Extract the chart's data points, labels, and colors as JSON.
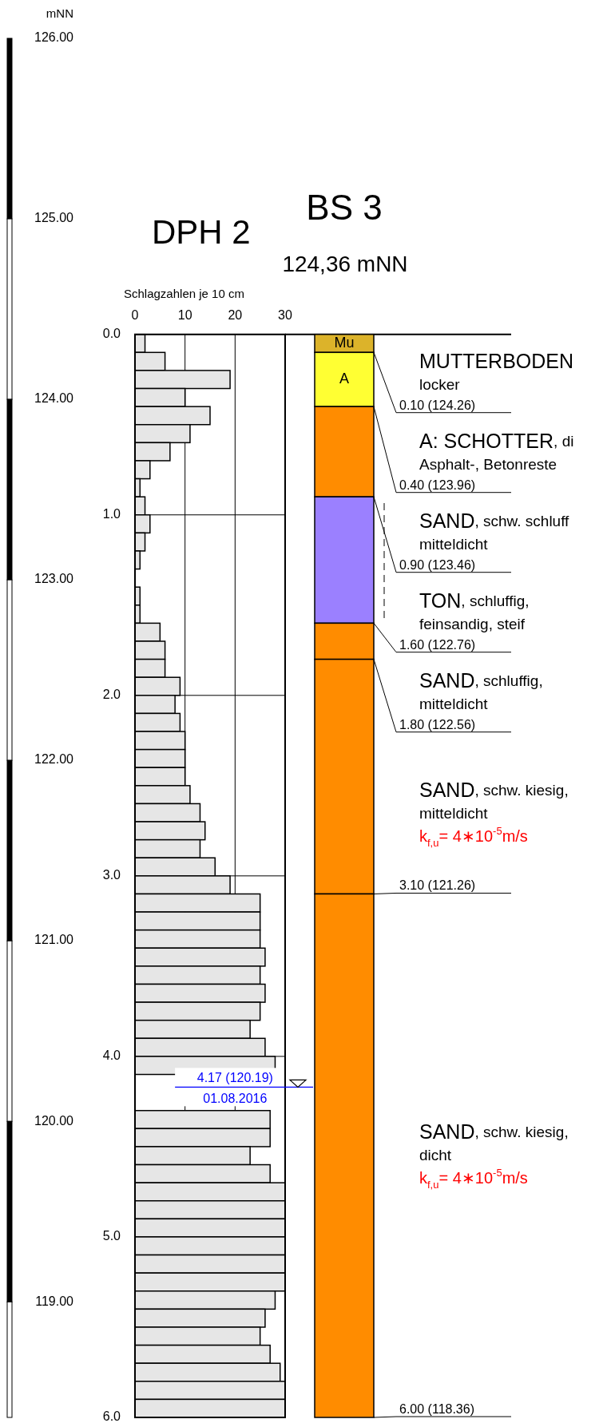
{
  "chart_data": [
    {
      "type": "histogram",
      "orientation": "horizontal",
      "title": "DPH 2",
      "xlabel": "Schlagzahlen je 10 cm",
      "y2label": "mNN",
      "color": "#e6e6e6",
      "bins": [
        0,
        0.1,
        0.2,
        0.3,
        0.4,
        0.5,
        0.6,
        0.7,
        0.8,
        0.9,
        1.0,
        1.1,
        1.2,
        1.3,
        1.4,
        1.5,
        1.6,
        1.7,
        1.8,
        1.9,
        2.0,
        2.1,
        2.2,
        2.3,
        2.4,
        2.5,
        2.6,
        2.7,
        2.8,
        2.9,
        3.0,
        3.1,
        3.2,
        3.3,
        3.4,
        3.5,
        3.6,
        3.7,
        3.8,
        3.9,
        4.0,
        4.1,
        4.2,
        4.3,
        4.4,
        4.5,
        4.6,
        4.7,
        4.8,
        4.9,
        5.0,
        5.1,
        5.2,
        5.3,
        5.4,
        5.5,
        5.6,
        5.7,
        5.8,
        5.9,
        6.0
      ],
      "values": [
        2,
        6,
        19,
        10,
        15,
        11,
        7,
        3,
        1,
        2,
        3,
        2,
        1,
        0,
        1,
        1,
        5,
        6,
        6,
        9,
        8,
        9,
        10,
        10,
        10,
        11,
        13,
        14,
        13,
        16,
        19,
        25,
        25,
        25,
        26,
        25,
        26,
        25,
        23,
        26,
        28,
        null,
        null,
        27,
        27,
        23,
        27,
        30,
        30,
        30,
        30,
        30,
        30,
        28,
        26,
        25,
        27,
        29,
        30,
        30
      ],
      "xlim": [
        0,
        30
      ],
      "xticks": [
        0,
        10,
        20,
        30
      ],
      "ylim": [
        6,
        0
      ],
      "yticks": [
        {
          "value": 0,
          "label": "0.0"
        },
        {
          "value": 1,
          "label": "1.0"
        },
        {
          "value": 2,
          "label": "2.0"
        },
        {
          "value": 3,
          "label": "3.0"
        },
        {
          "value": 4,
          "label": "4.0"
        },
        {
          "value": 5,
          "label": "5.0"
        },
        {
          "value": 6,
          "label": "6.0"
        }
      ],
      "y2lim": [
        118.36,
        126
      ],
      "y2ticks": [
        {
          "value": 119,
          "label": "119.00"
        },
        {
          "value": 120,
          "label": "120.00"
        },
        {
          "value": 121,
          "label": "121.00"
        },
        {
          "value": 122,
          "label": "122.00"
        },
        {
          "value": 123,
          "label": "123.00"
        },
        {
          "value": 124,
          "label": "124.00"
        },
        {
          "value": 125,
          "label": "125.00"
        },
        {
          "value": 126,
          "label": "126.00"
        }
      ],
      "grid": true,
      "ref_lines": [
        {
          "axis": "y",
          "value": 4.17,
          "label": "4.17 (120.19)",
          "color": "#0000ff"
        }
      ],
      "annotations": [
        {
          "text": "01.08.2016",
          "y": 4.17
        }
      ]
    },
    {
      "type": "bar",
      "stacked": true,
      "title": "BS 3",
      "subtitle": "124,36 mNN",
      "categories": [
        null
      ],
      "ylim": [
        6,
        0
      ],
      "tick_labels": false,
      "series": [
        {
          "name": "Mu",
          "color": "#dcb32a",
          "values": [
            0.1
          ]
        },
        {
          "name": "A",
          "color": "#ffff33",
          "values": [
            0.3
          ]
        },
        {
          "color": "#ff8c00",
          "values": [
            0.5
          ]
        },
        {
          "color": "#9b80ff",
          "values": [
            0.7
          ]
        },
        {
          "color": "#ff8c00",
          "values": [
            0.2
          ]
        },
        {
          "color": "#ff8c00",
          "values": [
            1.3
          ]
        },
        {
          "color": "#ff8c00",
          "values": [
            2.9
          ]
        }
      ],
      "annotations": [
        "MUTTERBODEN\nlocker",
        "0.10 (124.26)",
        "A: SCHOTTER, di\nAsphalt-, Betonreste",
        "0.40 (123.96)",
        "SAND, schw. schluff\nmitteldicht",
        "0.90 (123.46)",
        "TON, schluffig,\nfeinsandig, steif",
        "1.60 (122.76)",
        "SAND, schluffig,\nmitteldicht",
        "1.80 (122.56)",
        "SAND, schw. kiesig,\nmitteldicht\nk$_{f,u}$= 4∗10$^{-5}$m/s",
        "3.10 (121.26)",
        "SAND, schw. kiesig,\ndicht\nk$_{f,u}$= 4∗10$^{-5}$m/s",
        "6.00 (118.36)"
      ]
    }
  ]
}
